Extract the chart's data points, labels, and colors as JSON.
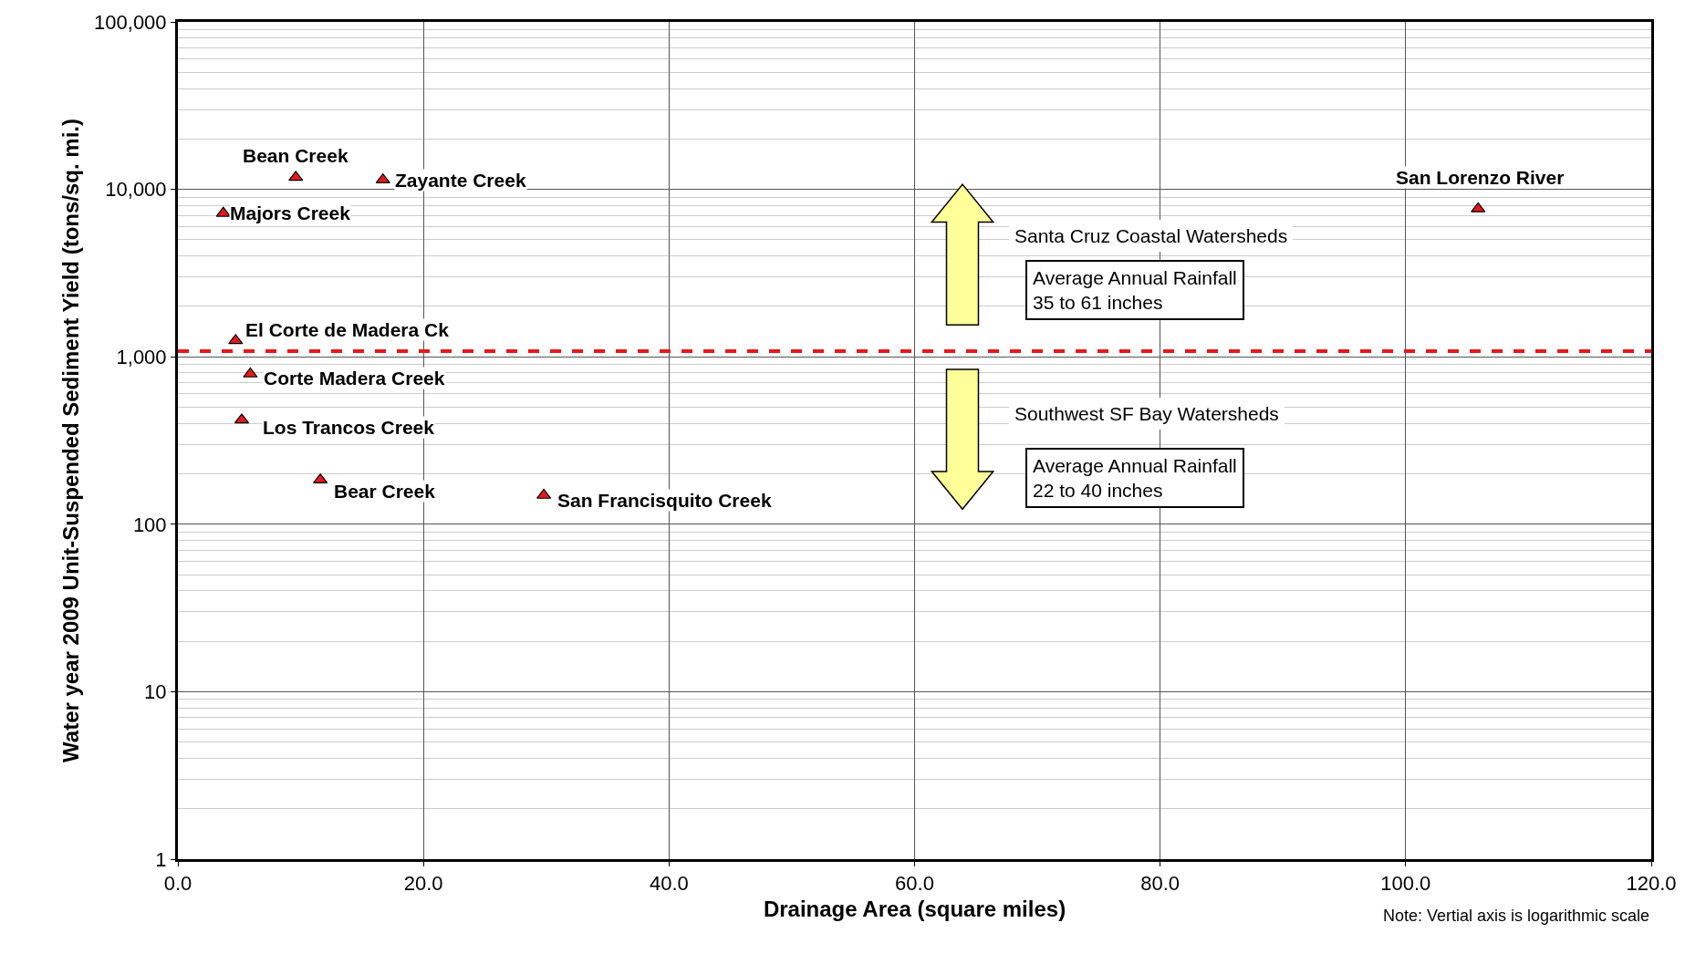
{
  "chart_data": {
    "type": "scatter",
    "xlabel": "Drainage Area (square miles)",
    "ylabel": "Water year 2009 Unit-Suspended Sediment Yield (tons/sq. mi.)",
    "x": [
      9.6,
      16.7,
      3.7,
      4.7,
      5.9,
      5.2,
      11.6,
      29.8,
      105.9
    ],
    "series": [
      {
        "color": "#e31a1c",
        "values": [
          11800,
          11400,
          7200,
          1250,
          790,
          420,
          184,
          149,
          7650
        ]
      }
    ],
    "marker": "triangle",
    "log": "y",
    "xlim": [
      0,
      120
    ],
    "xticks": [
      {
        "value": 0,
        "label": "0.0"
      },
      {
        "value": 20,
        "label": "20.0"
      },
      {
        "value": 40,
        "label": "40.0"
      },
      {
        "value": 60,
        "label": "60.0"
      },
      {
        "value": 80,
        "label": "80.0"
      },
      {
        "value": 100,
        "label": "100.0"
      },
      {
        "value": 120,
        "label": "120.0"
      }
    ],
    "ylim": [
      1,
      100000
    ],
    "yticks": [
      1,
      10,
      100,
      {
        "value": 1000,
        "label": "1,000"
      },
      {
        "value": 10000,
        "label": "10,000"
      },
      {
        "value": 100000,
        "label": "100,000"
      }
    ],
    "grid": true,
    "ref_lines": [
      {
        "axis": "y",
        "value": 1080,
        "color": "#e31a1c",
        "line_style": "dashed"
      }
    ],
    "annotations": [
      {
        "text": "Bean Creek",
        "x": 9.6,
        "y": 11800
      },
      {
        "text": "Zayante Creek",
        "x": 16.7,
        "y": 11400
      },
      {
        "text": "Majors Creek",
        "x": 3.7,
        "y": 7200
      },
      {
        "text": "El Corte de Madera Ck",
        "x": 4.7,
        "y": 1250
      },
      {
        "text": "Corte Madera Creek",
        "x": 5.9,
        "y": 790
      },
      {
        "text": "Los Trancos Creek",
        "x": 5.2,
        "y": 420
      },
      {
        "text": "Bear Creek",
        "x": 11.6,
        "y": 184
      },
      {
        "text": "San Francisquito Creek",
        "x": 29.8,
        "y": 149
      },
      {
        "text": "San Lorenzo River",
        "x": 105.9,
        "y": 7650
      },
      "Santa Cruz Coastal Watersheds",
      "Average Annual Rainfall\n35 to 61 inches",
      "Southwest SF Bay Watersheds",
      "Average Annual Rainfall\n22 to 40 inches",
      "Note: Vertial axis is logarithmic scale"
    ]
  }
}
